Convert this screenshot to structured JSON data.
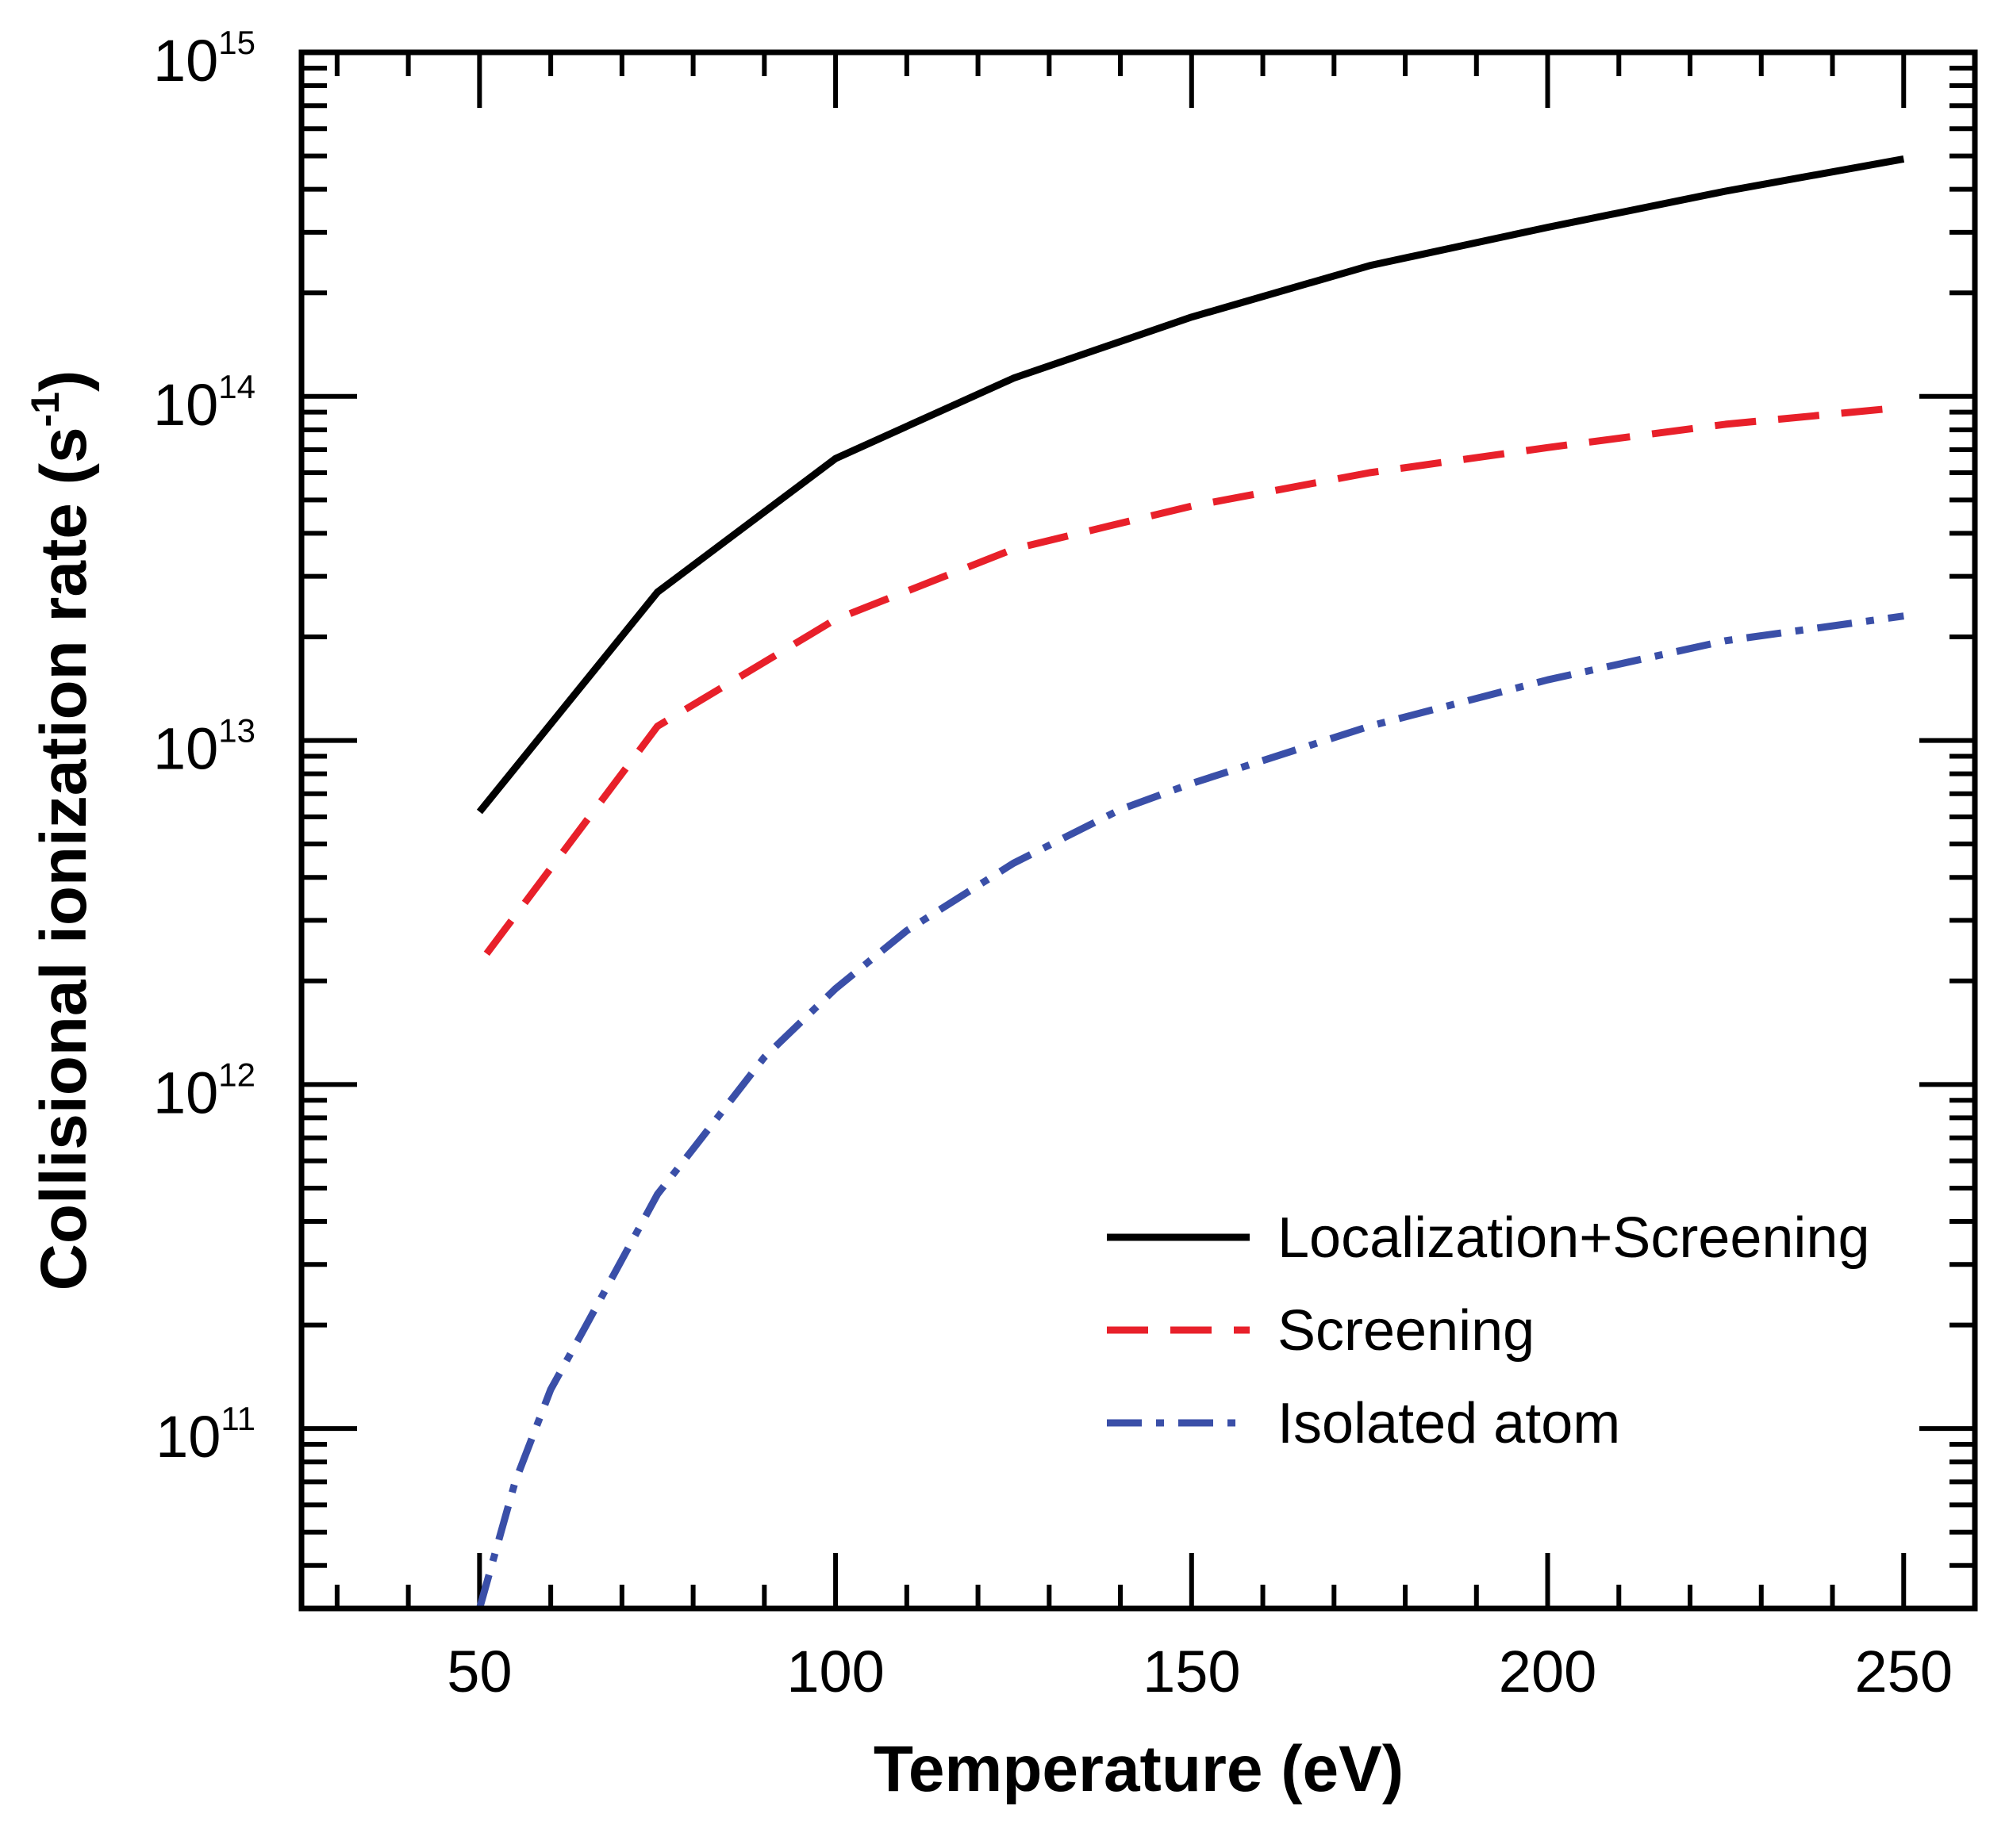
{
  "chart_data": {
    "type": "line",
    "xlabel": "Temperature (eV)",
    "ylabel_main": "Collisional ionization rate (s",
    "ylabel_sup": "-1",
    "ylabel_close": ")",
    "yscale": "log",
    "xlim": [
      25,
      260
    ],
    "ylim": [
      30000000000.0,
      1000000000000000.0
    ],
    "x_ticks": [
      50,
      100,
      150,
      200,
      250
    ],
    "x_tick_labels": [
      "50",
      "100",
      "150",
      "200",
      "250"
    ],
    "y_ticks": [
      {
        "value": 100000000000.0,
        "base": "10",
        "exp": "11"
      },
      {
        "value": 1000000000000.0,
        "base": "10",
        "exp": "12"
      },
      {
        "value": 10000000000000.0,
        "base": "10",
        "exp": "13"
      },
      {
        "value": 100000000000000.0,
        "base": "10",
        "exp": "14"
      },
      {
        "value": 1000000000000000.0,
        "base": "10",
        "exp": "15"
      }
    ],
    "legend_position": "lower-right",
    "series": [
      {
        "name": "Localization+Screening",
        "color": "#000000",
        "style": "solid",
        "x": [
          50,
          75,
          100,
          125,
          150,
          175,
          200,
          225,
          250
        ],
        "y": [
          6200000000000.0,
          27000000000000.0,
          66000000000000.0,
          113000000000000.0,
          170000000000000.0,
          240000000000000.0,
          310000000000000.0,
          395000000000000.0,
          490000000000000.0
        ]
      },
      {
        "name": "Screening",
        "color": "#e8202a",
        "style": "dashed",
        "x": [
          51,
          75,
          100,
          125,
          150,
          175,
          200,
          225,
          250
        ],
        "y": [
          2400000000000.0,
          11000000000000.0,
          22500000000000.0,
          36000000000000.0,
          48000000000000.0,
          60000000000000.0,
          71000000000000.0,
          83000000000000.0,
          93000000000000.0
        ]
      },
      {
        "name": "Isolated atom",
        "color": "#3a4fa8",
        "style": "dashdot",
        "x": [
          50,
          55,
          60,
          65,
          70,
          75,
          80,
          90,
          100,
          110,
          125,
          140,
          150,
          175,
          200,
          225,
          250
        ],
        "y": [
          30000000000.0,
          70000000000.0,
          130000000000.0,
          200000000000.0,
          310000000000.0,
          480000000000.0,
          650000000000.0,
          1200000000000.0,
          1900000000000.0,
          2800000000000.0,
          4400000000000.0,
          6300000000000.0,
          7500000000000.0,
          11000000000000.0,
          15000000000000.0,
          19500000000000.0,
          23000000000000.0
        ]
      }
    ]
  }
}
